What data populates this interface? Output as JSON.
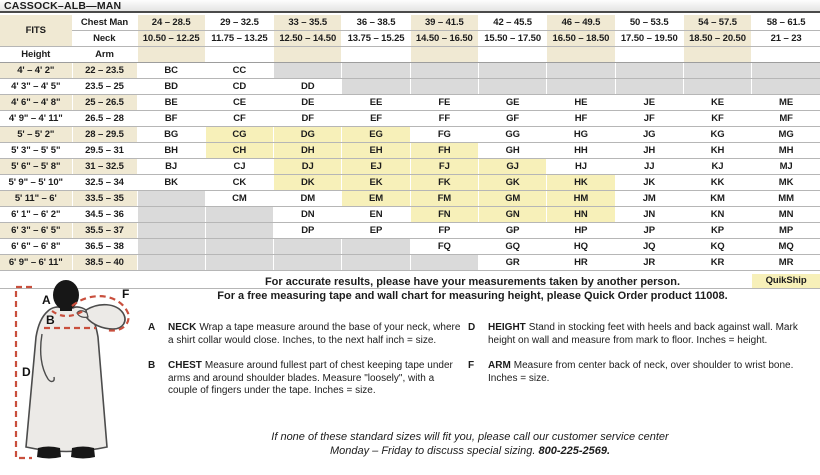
{
  "title": "CASSOCK–ALB—MAN",
  "colors": {
    "highlight_yellow": "#f7f0b9",
    "header_cream": "#f0e9d3",
    "empty_gray": "#dadada",
    "figure_dash_red": "#c94f3d"
  },
  "table": {
    "fits_label": "FITS",
    "chest_label": "Chest Man",
    "neck_label": "Neck",
    "height_label": "Height",
    "arm_label": "Arm",
    "quikship_label": "QuikShip",
    "columns": [
      {
        "chest": "24 – 28.5",
        "neck": "10.50 – 12.25"
      },
      {
        "chest": "29 – 32.5",
        "neck": "11.75 – 13.25"
      },
      {
        "chest": "33 – 35.5",
        "neck": "12.50 – 14.50"
      },
      {
        "chest": "36 – 38.5",
        "neck": "13.75 – 15.25"
      },
      {
        "chest": "39 – 41.5",
        "neck": "14.50 – 16.50"
      },
      {
        "chest": "42 – 45.5",
        "neck": "15.50 – 17.50"
      },
      {
        "chest": "46 – 49.5",
        "neck": "16.50 – 18.50"
      },
      {
        "chest": "50 – 53.5",
        "neck": "17.50 – 19.50"
      },
      {
        "chest": "54 – 57.5",
        "neck": "18.50 – 20.50"
      },
      {
        "chest": "58 – 61.5",
        "neck": "21 – 23"
      }
    ],
    "rows": [
      {
        "height": "4' – 4' 2\"",
        "arm": "22 – 23.5",
        "cells": [
          "BC",
          "CC",
          "",
          "",
          "",
          "",
          "",
          "",
          "",
          ""
        ]
      },
      {
        "height": "4' 3\" – 4' 5\"",
        "arm": "23.5 – 25",
        "cells": [
          "BD",
          "CD",
          "DD",
          "",
          "",
          "",
          "",
          "",
          "",
          ""
        ]
      },
      {
        "height": "4' 6\" – 4' 8\"",
        "arm": "25 – 26.5",
        "cells": [
          "BE",
          "CE",
          "DE",
          "EE",
          "FE",
          "GE",
          "HE",
          "JE",
          "KE",
          "ME"
        ]
      },
      {
        "height": "4' 9\" – 4' 11\"",
        "arm": "26.5 – 28",
        "cells": [
          "BF",
          "CF",
          "DF",
          "EF",
          "FF",
          "GF",
          "HF",
          "JF",
          "KF",
          "MF"
        ]
      },
      {
        "height": "5' – 5' 2\"",
        "arm": "28 – 29.5",
        "cells": [
          "BG",
          "CG",
          "DG",
          "EG",
          "FG",
          "GG",
          "HG",
          "JG",
          "KG",
          "MG"
        ]
      },
      {
        "height": "5' 3\" – 5' 5\"",
        "arm": "29.5 – 31",
        "cells": [
          "BH",
          "CH",
          "DH",
          "EH",
          "FH",
          "GH",
          "HH",
          "JH",
          "KH",
          "MH"
        ]
      },
      {
        "height": "5' 6\" – 5' 8\"",
        "arm": "31 – 32.5",
        "cells": [
          "BJ",
          "CJ",
          "DJ",
          "EJ",
          "FJ",
          "GJ",
          "HJ",
          "JJ",
          "KJ",
          "MJ"
        ]
      },
      {
        "height": "5' 9\" – 5' 10\"",
        "arm": "32.5 – 34",
        "cells": [
          "BK",
          "CK",
          "DK",
          "EK",
          "FK",
          "GK",
          "HK",
          "JK",
          "KK",
          "MK"
        ]
      },
      {
        "height": "5' 11\" – 6'",
        "arm": "33.5 – 35",
        "cells": [
          "",
          "CM",
          "DM",
          "EM",
          "FM",
          "GM",
          "HM",
          "JM",
          "KM",
          "MM"
        ]
      },
      {
        "height": "6' 1\" – 6' 2\"",
        "arm": "34.5 – 36",
        "cells": [
          "",
          "",
          "DN",
          "EN",
          "FN",
          "GN",
          "HN",
          "JN",
          "KN",
          "MN"
        ]
      },
      {
        "height": "6' 3\" – 6' 5\"",
        "arm": "35.5 – 37",
        "cells": [
          "",
          "",
          "DP",
          "EP",
          "FP",
          "GP",
          "HP",
          "JP",
          "KP",
          "MP"
        ]
      },
      {
        "height": "6' 6\" – 6' 8\"",
        "arm": "36.5 – 38",
        "cells": [
          "",
          "",
          "",
          "",
          "FQ",
          "GQ",
          "HQ",
          "JQ",
          "KQ",
          "MQ"
        ]
      },
      {
        "height": "6' 9\" – 6' 11\"",
        "arm": "38.5 – 40",
        "cells": [
          "",
          "",
          "",
          "",
          "",
          "GR",
          "HR",
          "JR",
          "KR",
          "MR"
        ]
      }
    ],
    "highlighted": [
      "CG",
      "CH",
      "DG",
      "DH",
      "DJ",
      "DK",
      "EG",
      "EH",
      "EJ",
      "EK",
      "EM",
      "FH",
      "FJ",
      "FK",
      "FM",
      "FN",
      "GJ",
      "GK",
      "GM",
      "GN",
      "HK",
      "HM",
      "HN"
    ]
  },
  "notes": {
    "line1": "For accurate results, please have your measurements taken by another person.",
    "line2": "For a free measuring tape and wall chart for measuring height, please Quick Order product 11008."
  },
  "instructions": [
    {
      "key": "A",
      "term": "NECK",
      "text": "Wrap a tape measure around the base of your neck, where a shirt collar would close. Inches, to the next half inch = size."
    },
    {
      "key": "B",
      "term": "CHEST",
      "text": "Measure around fullest part of chest keeping tape under arms and around shoulder blades. Measure \"loosely\", with a couple of fingers under the tape. Inches = size."
    },
    {
      "key": "D",
      "term": "HEIGHT",
      "text": "Stand in stocking feet with heels and back against wall. Mark height on wall and measure from mark to floor. Inches = height."
    },
    {
      "key": "F",
      "term": "ARM",
      "text": "Measure from center back of neck, over shoulder to wrist bone. Inches = size."
    }
  ],
  "figure": {
    "labels": [
      "A",
      "B",
      "D",
      "F"
    ]
  },
  "footer": {
    "line1": "If none of these standard sizes will fit you, please call our customer service center",
    "line2": "Monday – Friday to discuss special sizing.",
    "phone": "800-225-2569."
  }
}
